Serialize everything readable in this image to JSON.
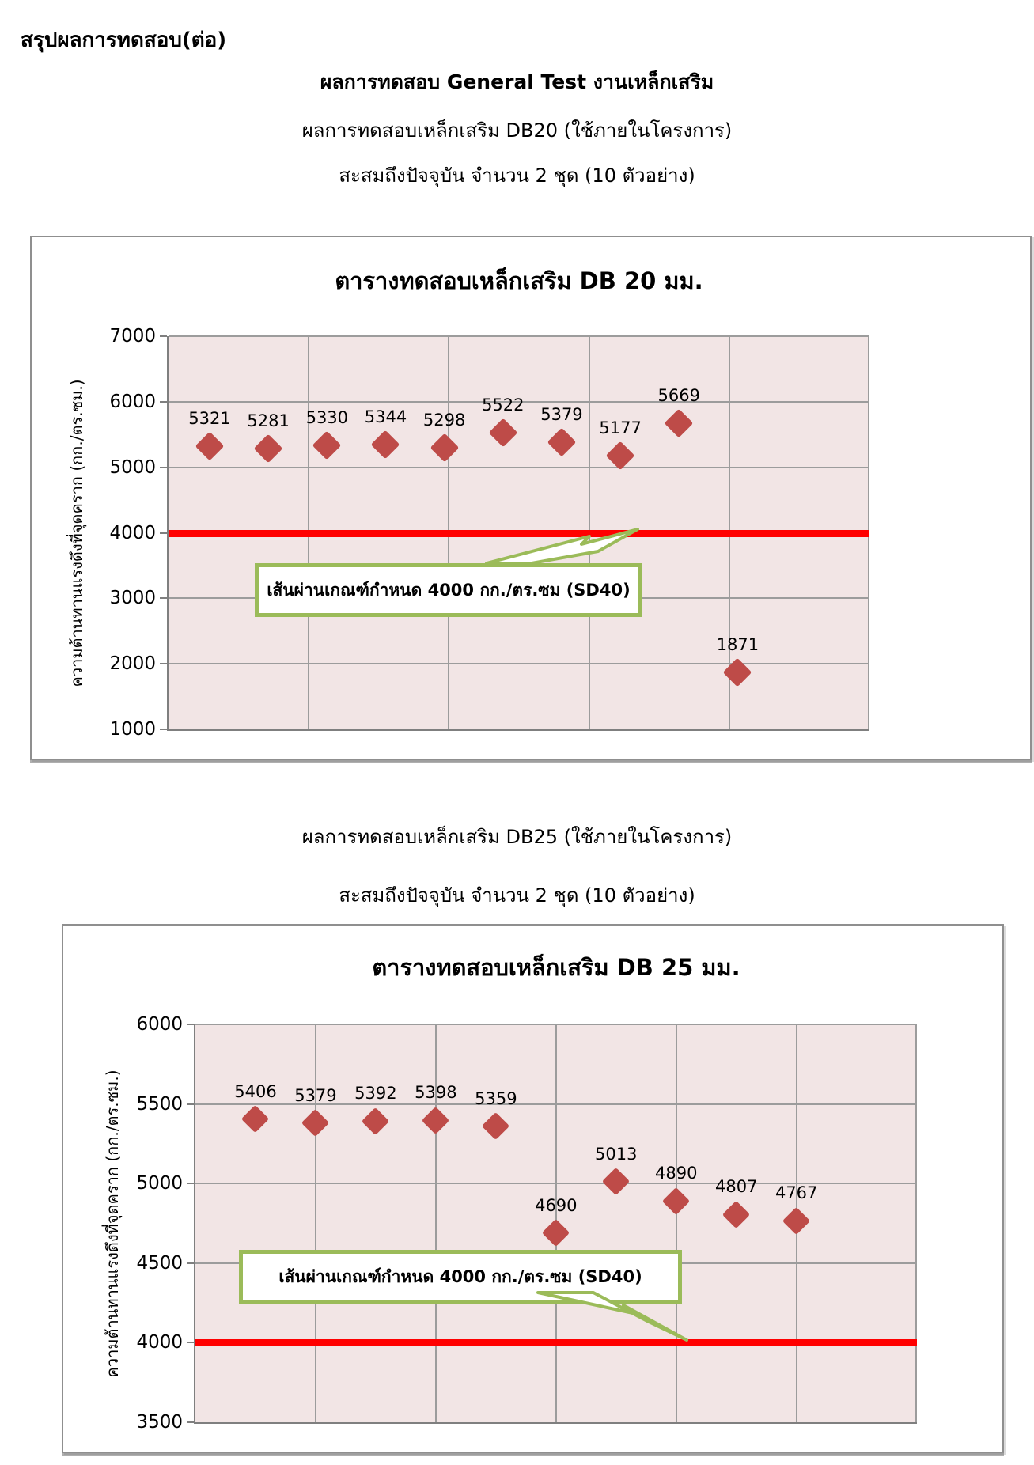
{
  "page": {
    "title": "สรุปผลการทดสอบ(ต่อ)",
    "heading": "ผลการทดสอบ General Test งานเหล็กเสริม",
    "sections": [
      {
        "subtitle": "ผลการทดสอบเหล็กเสริม DB20 (ใช้ภายในโครงการ)",
        "accumulation": "สะสมถึงปัจจุบัน จำนวน 2 ชุด (10 ตัวอย่าง)"
      },
      {
        "subtitle": "ผลการทดสอบเหล็กเสริม DB25 (ใช้ภายในโครงการ)",
        "accumulation": "สะสมถึงปัจจุบัน จำนวน 2 ชุด (10 ตัวอย่าง)"
      }
    ]
  },
  "colors": {
    "marker": "#BE4B48",
    "plot_bg": "#F2E5E5",
    "grid": "#9c9c9c",
    "axis": "#7f7f7f",
    "limit_line": "#FF0000",
    "callout_border": "#9BBB59",
    "text": "#000000"
  },
  "chart_data": [
    {
      "type": "scatter",
      "title": "ตารางทดสอบเหล็กเสริม DB 20 มม.",
      "ylabel": "ความต้านทานแรงดึงที่จุดคราก  (กก./ตร.ซม.)",
      "xlabel": "",
      "x": [
        1,
        2,
        3,
        4,
        5,
        6,
        7,
        8,
        9,
        10
      ],
      "values": [
        5321,
        5281,
        5330,
        5344,
        5298,
        5522,
        5379,
        5177,
        5669,
        1871
      ],
      "ylim": [
        1000,
        7000
      ],
      "ytick_step": 1000,
      "ytick_labels": [
        "7000",
        "6000",
        "5000",
        "4000",
        "3000",
        "2000",
        "1000"
      ],
      "grid": true,
      "legend": "none",
      "marker": "diamond",
      "limit_line_value": 4000,
      "annotation": "เส้นผ่านเกณฑ์กำหนด 4000 กก./ตร.ซม (SD40)"
    },
    {
      "type": "scatter",
      "title": "ตารางทดสอบเหล็กเสริม DB 25 มม.",
      "ylabel": "ความต้านทานแรงดึงที่จุดคราก  (กก./ตร.ซม.)",
      "xlabel": "",
      "x": [
        1,
        2,
        3,
        4,
        5,
        6,
        7,
        8,
        9,
        10
      ],
      "values": [
        5406,
        5379,
        5392,
        5398,
        5359,
        4690,
        5013,
        4890,
        4807,
        4767
      ],
      "ylim": [
        3500,
        6000
      ],
      "ytick_step": 500,
      "ytick_labels": [
        "6000",
        "5500",
        "5000",
        "4500",
        "4000",
        "3500"
      ],
      "grid": true,
      "legend": "none",
      "marker": "diamond",
      "limit_line_value": 4000,
      "annotation": "เส้นผ่านเกณฑ์กำหนด 4000 กก./ตร.ซม (SD40)"
    }
  ]
}
